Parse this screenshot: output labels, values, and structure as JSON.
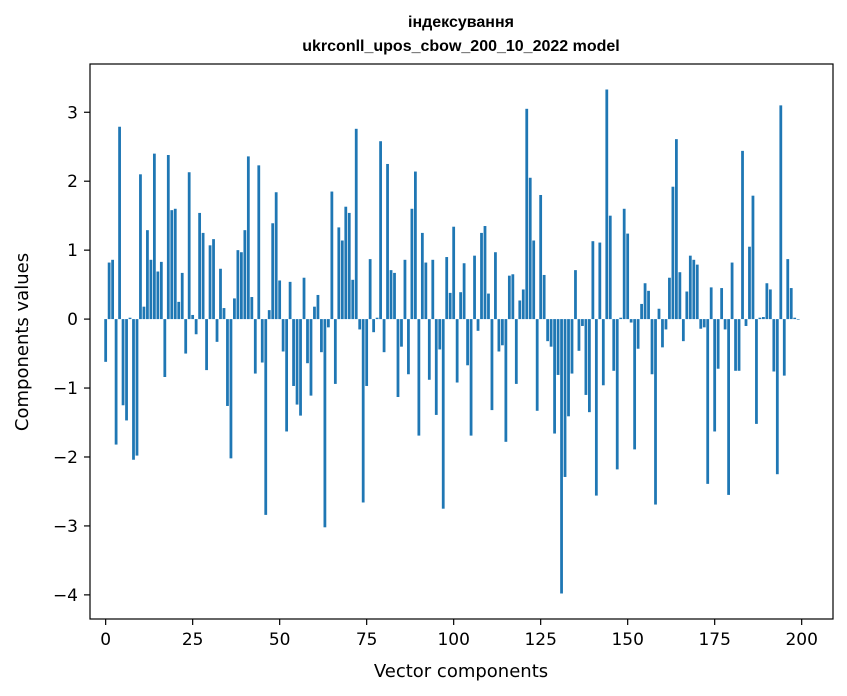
{
  "chart_data": {
    "type": "bar",
    "title": "індексування",
    "subtitle": "ukrconll_upos_cbow_200_10_2022 model",
    "xlabel": "Vector components",
    "ylabel": "Components values",
    "xlim": [
      -4.5,
      209
    ],
    "ylim": [
      -4.35,
      3.7
    ],
    "xticks": [
      0,
      25,
      50,
      75,
      100,
      125,
      150,
      175,
      200
    ],
    "yticks": [
      -4,
      -3,
      -2,
      -1,
      0,
      1,
      2,
      3
    ],
    "ytick_labels": [
      "−4",
      "−3",
      "−2",
      "−1",
      "0",
      "1",
      "2",
      "3"
    ],
    "grid": false,
    "bar_color": "#1f77b4",
    "values": [
      -0.62,
      0.82,
      0.86,
      -1.82,
      2.79,
      -1.25,
      -1.47,
      0.02,
      -2.04,
      -1.98,
      2.1,
      0.18,
      1.29,
      0.86,
      2.4,
      0.69,
      0.83,
      -0.84,
      2.38,
      1.58,
      1.6,
      0.25,
      0.67,
      -0.5,
      2.13,
      0.06,
      -0.22,
      1.54,
      1.25,
      -0.74,
      1.07,
      1.16,
      -0.33,
      0.73,
      0.16,
      -1.26,
      -2.02,
      0.3,
      1.0,
      0.97,
      1.29,
      2.36,
      0.32,
      -0.79,
      2.23,
      -0.63,
      -2.84,
      0.13,
      1.39,
      1.84,
      0.56,
      -0.47,
      -1.63,
      0.54,
      -0.97,
      -1.24,
      -1.4,
      0.6,
      -0.64,
      -1.11,
      0.18,
      0.35,
      -0.48,
      -3.02,
      -0.12,
      1.85,
      -0.94,
      1.33,
      1.14,
      1.63,
      1.54,
      0.57,
      2.76,
      -0.15,
      -2.66,
      -0.97,
      0.87,
      -0.19,
      0.02,
      2.58,
      -0.48,
      2.25,
      0.71,
      0.67,
      -1.13,
      -0.4,
      0.86,
      -0.8,
      1.6,
      2.14,
      -1.69,
      1.25,
      0.82,
      -0.88,
      0.86,
      -1.39,
      -0.44,
      -2.75,
      0.9,
      0.38,
      1.34,
      -0.92,
      0.39,
      0.81,
      -0.67,
      -1.69,
      0.92,
      -0.17,
      1.25,
      1.35,
      0.37,
      -1.32,
      0.97,
      -0.47,
      -0.38,
      -1.78,
      0.63,
      0.65,
      -0.94,
      0.27,
      0.43,
      3.05,
      2.05,
      1.14,
      -1.33,
      1.8,
      0.64,
      -0.32,
      -0.4,
      -1.66,
      -0.81,
      -3.98,
      -2.29,
      -1.41,
      -0.79,
      0.71,
      -0.46,
      -0.1,
      -1.1,
      -1.35,
      1.13,
      -2.56,
      1.11,
      -0.96,
      3.33,
      1.5,
      -0.75,
      -2.18,
      0.02,
      1.6,
      1.24,
      -0.05,
      -1.89,
      -0.43,
      0.22,
      0.52,
      0.41,
      -0.8,
      -2.69,
      0.15,
      -0.41,
      -0.15,
      0.6,
      1.92,
      2.61,
      0.68,
      -0.32,
      0.4,
      0.92,
      0.86,
      0.79,
      -0.14,
      -0.12,
      -2.39,
      0.46,
      -1.63,
      -0.72,
      0.45,
      -0.15,
      -2.55,
      0.82,
      -0.75,
      -0.75,
      2.44,
      -0.1,
      1.05,
      1.79,
      -1.52,
      0.02,
      0.03,
      0.52,
      0.43,
      -0.76,
      -2.25,
      3.1,
      -0.82,
      0.87,
      0.45,
      0.02,
      0.0
    ]
  }
}
